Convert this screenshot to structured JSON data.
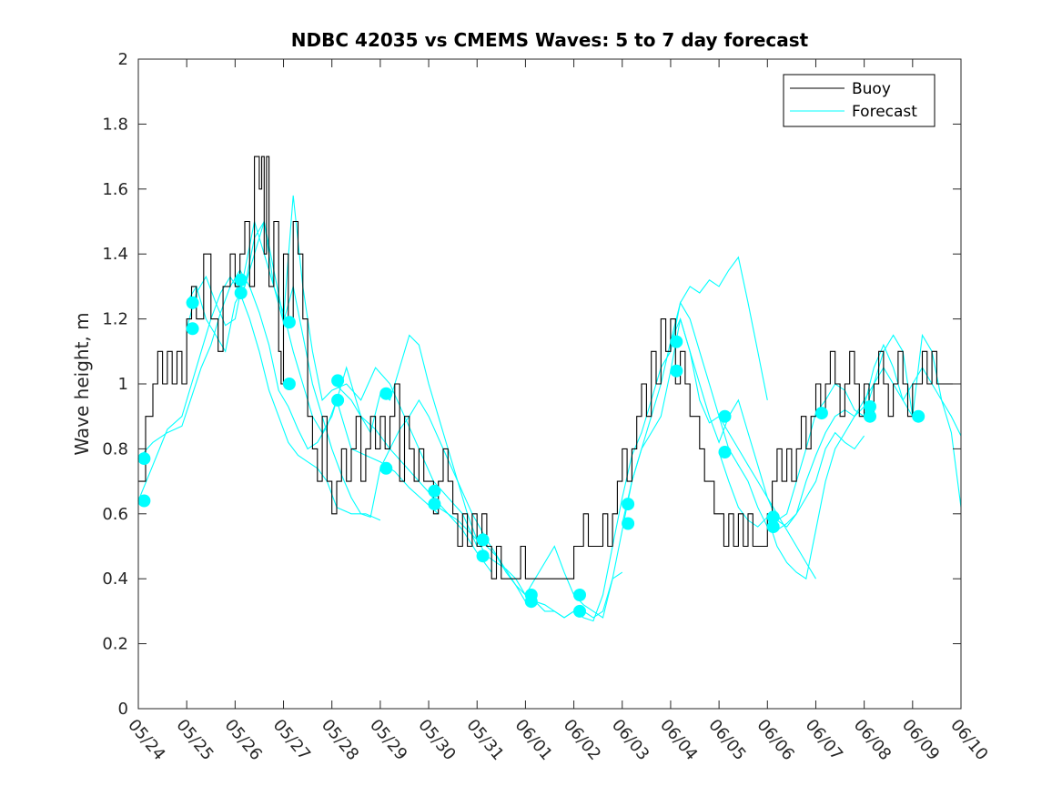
{
  "chart_data": {
    "type": "line",
    "title": "NDBC 42035 vs CMEMS Waves: 5 to 7 day forecast",
    "xlabel": "",
    "ylabel": "Wave height, m",
    "xlim": [
      0,
      17
    ],
    "ylim": [
      0,
      2
    ],
    "yticks": [
      0,
      0.2,
      0.4,
      0.6,
      0.8,
      1,
      1.2,
      1.4,
      1.6,
      1.8,
      2
    ],
    "ytick_labels": [
      "0",
      "0.2",
      "0.4",
      "0.6",
      "0.8",
      "1",
      "1.2",
      "1.4",
      "1.6",
      "1.8",
      "2"
    ],
    "xtick_labels": [
      "05/24",
      "05/25",
      "05/26",
      "05/27",
      "05/28",
      "05/29",
      "05/30",
      "05/31",
      "06/01",
      "06/02",
      "06/03",
      "06/04",
      "06/05",
      "06/06",
      "06/07",
      "06/08",
      "06/09",
      "06/10"
    ],
    "legend": {
      "position": "top-right"
    },
    "colors": {
      "buoy": "#000000",
      "forecast": "#00ffff",
      "markers": "#00ffff",
      "axes": "#262626"
    },
    "series": [
      {
        "name": "Buoy",
        "color": "#000000",
        "step": true,
        "x": [
          0.0,
          0.15,
          0.3,
          0.4,
          0.5,
          0.6,
          0.7,
          0.8,
          0.9,
          1.0,
          1.1,
          1.2,
          1.35,
          1.5,
          1.65,
          1.75,
          1.9,
          2.0,
          2.1,
          2.2,
          2.3,
          2.4,
          2.5,
          2.55,
          2.6,
          2.65,
          2.7,
          2.8,
          2.9,
          2.95,
          3.0,
          3.1,
          3.2,
          3.3,
          3.4,
          3.5,
          3.6,
          3.7,
          3.8,
          3.9,
          4.0,
          4.1,
          4.2,
          4.3,
          4.4,
          4.5,
          4.6,
          4.7,
          4.8,
          4.9,
          5.0,
          5.1,
          5.2,
          5.3,
          5.4,
          5.5,
          5.6,
          5.7,
          5.8,
          5.9,
          6.0,
          6.1,
          6.2,
          6.3,
          6.4,
          6.5,
          6.6,
          6.7,
          6.8,
          6.9,
          7.0,
          7.1,
          7.2,
          7.3,
          7.4,
          7.5,
          7.6,
          7.7,
          7.8,
          7.9,
          8.0,
          8.2,
          8.4,
          8.6,
          8.8,
          9.0,
          9.1,
          9.2,
          9.3,
          9.4,
          9.5,
          9.6,
          9.7,
          9.8,
          9.9,
          10.0,
          10.1,
          10.2,
          10.3,
          10.4,
          10.5,
          10.6,
          10.7,
          10.8,
          10.9,
          11.0,
          11.1,
          11.2,
          11.3,
          11.4,
          11.5,
          11.6,
          11.7,
          11.8,
          11.9,
          12.0,
          12.1,
          12.2,
          12.3,
          12.4,
          12.5,
          12.6,
          12.7,
          12.8,
          12.9,
          13.0,
          13.1,
          13.2,
          13.3,
          13.4,
          13.5,
          13.6,
          13.7,
          13.8,
          13.9,
          14.0,
          14.1,
          14.2,
          14.3,
          14.4,
          14.5,
          14.6,
          14.7,
          14.8,
          14.9,
          15.0,
          15.1,
          15.2,
          15.3,
          15.4,
          15.5,
          15.6,
          15.7,
          15.8,
          15.9,
          16.0,
          16.1,
          16.2,
          16.3,
          16.4,
          16.5,
          16.6,
          16.7,
          16.8,
          16.9,
          17.0
        ],
        "values": [
          0.7,
          0.9,
          1.0,
          1.1,
          1.0,
          1.1,
          1.0,
          1.1,
          1.0,
          1.2,
          1.3,
          1.2,
          1.4,
          1.2,
          1.1,
          1.3,
          1.4,
          1.3,
          1.4,
          1.5,
          1.3,
          1.7,
          1.6,
          1.7,
          1.4,
          1.7,
          1.3,
          1.5,
          1.1,
          1.0,
          1.4,
          1.2,
          1.5,
          1.4,
          1.2,
          0.9,
          0.8,
          0.7,
          0.9,
          0.7,
          0.6,
          0.7,
          0.8,
          0.7,
          0.8,
          0.9,
          0.7,
          0.8,
          0.9,
          0.8,
          0.9,
          0.8,
          0.9,
          1.0,
          0.7,
          0.9,
          0.8,
          0.7,
          0.8,
          0.7,
          0.7,
          0.6,
          0.7,
          0.8,
          0.7,
          0.6,
          0.5,
          0.6,
          0.5,
          0.6,
          0.5,
          0.6,
          0.5,
          0.4,
          0.5,
          0.4,
          0.4,
          0.4,
          0.4,
          0.5,
          0.4,
          0.4,
          0.4,
          0.4,
          0.4,
          0.5,
          0.5,
          0.6,
          0.5,
          0.5,
          0.5,
          0.6,
          0.5,
          0.6,
          0.7,
          0.8,
          0.7,
          0.8,
          0.9,
          1.0,
          0.9,
          1.1,
          1.0,
          1.2,
          1.1,
          1.2,
          1.0,
          1.1,
          1.0,
          0.9,
          0.9,
          0.8,
          0.7,
          0.7,
          0.6,
          0.6,
          0.5,
          0.6,
          0.5,
          0.6,
          0.5,
          0.6,
          0.5,
          0.5,
          0.5,
          0.6,
          0.7,
          0.8,
          0.7,
          0.8,
          0.7,
          0.8,
          0.9,
          0.8,
          0.9,
          1.0,
          0.9,
          1.0,
          1.1,
          1.0,
          0.9,
          1.0,
          1.1,
          1.0,
          0.9,
          1.0,
          0.9,
          1.0,
          1.1,
          1.0,
          0.9,
          1.0,
          1.1,
          1.0,
          0.9,
          1.0,
          1.0,
          1.1,
          1.0,
          1.1,
          1.0,
          1.0,
          1.0,
          1.0,
          1.0,
          1.0
        ]
      },
      {
        "name": "Forecast",
        "color": "#00ffff",
        "x": [
          0.0,
          0.3,
          0.6,
          0.9,
          1.1,
          1.3,
          1.5,
          1.7,
          1.9,
          2.1,
          2.3,
          2.5,
          2.7,
          2.9,
          3.1,
          3.3,
          3.5,
          3.7,
          3.9,
          4.1,
          4.4,
          4.7,
          5.0
        ],
        "values": [
          0.64,
          0.75,
          0.86,
          0.9,
          1.0,
          1.1,
          1.2,
          1.28,
          1.33,
          1.28,
          1.2,
          1.1,
          0.98,
          0.9,
          0.82,
          0.78,
          0.76,
          0.74,
          0.7,
          0.62,
          0.6,
          0.6,
          0.58
        ]
      },
      {
        "name": "",
        "color": "#00ffff",
        "x": [
          0.0,
          0.3,
          0.6,
          0.9,
          1.1,
          1.3,
          1.5,
          1.7,
          1.9,
          2.1,
          2.3,
          2.5,
          2.7,
          2.9,
          3.1,
          3.3,
          3.5,
          3.7,
          3.9,
          4.1,
          4.4,
          4.7,
          5.0,
          5.3,
          5.6,
          5.9,
          6.2
        ],
        "values": [
          0.77,
          0.82,
          0.85,
          0.87,
          0.96,
          1.05,
          1.12,
          1.22,
          1.3,
          1.35,
          1.3,
          1.22,
          1.12,
          0.98,
          0.93,
          0.86,
          0.8,
          0.82,
          0.87,
          0.95,
          0.8,
          0.78,
          0.76,
          0.73,
          0.68,
          0.64,
          0.6
        ]
      },
      {
        "name": "",
        "color": "#00ffff",
        "x": [
          1.0,
          1.2,
          1.4,
          1.6,
          1.8,
          2.0,
          2.2,
          2.4,
          2.6,
          2.8,
          3.0,
          3.2,
          3.4,
          3.6,
          3.8,
          4.0,
          4.3,
          4.6,
          4.9,
          5.2,
          5.5,
          5.8,
          6.1,
          6.4,
          6.7,
          7.0,
          7.3
        ],
        "values": [
          1.17,
          1.28,
          1.33,
          1.25,
          1.18,
          1.2,
          1.35,
          1.5,
          1.4,
          1.3,
          1.22,
          1.1,
          1.0,
          0.9,
          0.85,
          0.9,
          1.05,
          0.9,
          0.86,
          0.8,
          0.75,
          0.7,
          0.65,
          0.6,
          0.55,
          0.48,
          0.42
        ]
      },
      {
        "name": "",
        "color": "#00ffff",
        "x": [
          1.0,
          1.2,
          1.4,
          1.6,
          1.8,
          2.0,
          2.2,
          2.4,
          2.6,
          2.8,
          3.0,
          3.2,
          3.4,
          3.6,
          3.8,
          4.0,
          4.3,
          4.6,
          4.9,
          5.2,
          5.5,
          5.8,
          6.1,
          6.4,
          6.7,
          7.0
        ],
        "values": [
          1.25,
          1.3,
          1.2,
          1.15,
          1.1,
          1.25,
          1.3,
          1.45,
          1.5,
          1.35,
          1.2,
          1.58,
          1.3,
          1.1,
          0.95,
          0.98,
          1.0,
          0.95,
          1.05,
          1.0,
          0.9,
          0.8,
          0.7,
          0.65,
          0.6,
          0.5
        ]
      },
      {
        "name": "",
        "color": "#00ffff",
        "x": [
          2.0,
          2.2,
          2.4,
          2.6,
          2.8,
          3.0,
          3.2,
          3.4,
          3.6,
          3.8,
          4.0,
          4.2,
          4.4,
          4.6,
          4.8,
          5.0,
          5.2,
          5.4,
          5.6,
          5.8,
          6.0,
          6.3,
          6.6,
          6.9,
          7.2,
          7.5,
          7.8,
          8.0
        ],
        "values": [
          1.28,
          1.3,
          1.4,
          1.5,
          1.3,
          1.19,
          1.3,
          1.15,
          1.0,
          0.9,
          0.8,
          0.72,
          0.65,
          0.6,
          0.59,
          0.74,
          0.8,
          0.86,
          0.9,
          0.95,
          0.9,
          0.8,
          0.7,
          0.6,
          0.52,
          0.45,
          0.38,
          0.33
        ]
      },
      {
        "name": "",
        "color": "#00ffff",
        "x": [
          4.0,
          4.2,
          4.4,
          4.6,
          4.8,
          5.0,
          5.2,
          5.4,
          5.6,
          5.8,
          6.0,
          6.2,
          6.4,
          6.6,
          6.8,
          7.0,
          7.2,
          7.4,
          7.6,
          7.8,
          8.0,
          8.2,
          8.4,
          8.6,
          8.8,
          9.0
        ],
        "values": [
          1.01,
          0.98,
          0.95,
          0.9,
          0.85,
          0.97,
          0.95,
          1.05,
          1.15,
          1.12,
          1.0,
          0.9,
          0.8,
          0.7,
          0.6,
          0.52,
          0.5,
          0.47,
          0.42,
          0.38,
          0.35,
          0.33,
          0.32,
          0.3,
          0.28,
          0.3
        ]
      },
      {
        "name": "",
        "color": "#00ffff",
        "x": [
          6.0,
          6.2,
          6.4,
          6.6,
          6.8,
          7.0,
          7.2,
          7.4,
          7.6,
          7.8,
          8.0,
          8.2,
          8.4,
          8.6,
          8.8,
          9.0,
          9.2,
          9.4,
          9.6,
          9.8,
          10.0
        ],
        "values": [
          0.67,
          0.62,
          0.6,
          0.58,
          0.55,
          0.52,
          0.47,
          0.45,
          0.43,
          0.4,
          0.35,
          0.33,
          0.3,
          0.3,
          0.28,
          0.3,
          0.3,
          0.28,
          0.3,
          0.4,
          0.42
        ]
      },
      {
        "name": "",
        "color": "#00ffff",
        "x": [
          8.0,
          8.2,
          8.4,
          8.6,
          8.8,
          9.0,
          9.2,
          9.4,
          9.6,
          9.8,
          10.0,
          10.2,
          10.4,
          10.6,
          10.8,
          11.0,
          11.2,
          11.4,
          11.6,
          11.8,
          12.0,
          12.2,
          12.4,
          12.6,
          12.8,
          13.0
        ],
        "values": [
          0.35,
          0.4,
          0.45,
          0.5,
          0.42,
          0.35,
          0.32,
          0.3,
          0.28,
          0.4,
          0.55,
          0.7,
          0.8,
          0.9,
          1.0,
          1.13,
          1.25,
          1.3,
          1.28,
          1.32,
          1.3,
          1.35,
          1.39,
          1.25,
          1.1,
          0.95
        ]
      },
      {
        "name": "",
        "color": "#00ffff",
        "x": [
          9.0,
          9.2,
          9.4,
          9.6,
          9.8,
          10.0,
          10.2,
          10.4,
          10.6,
          10.8,
          11.0,
          11.2,
          11.4,
          11.6,
          11.8,
          12.0,
          12.2,
          12.4,
          12.6,
          12.8,
          13.0,
          13.2,
          13.4,
          13.6,
          13.8,
          14.0
        ],
        "values": [
          0.3,
          0.28,
          0.27,
          0.35,
          0.5,
          0.65,
          0.78,
          0.85,
          0.95,
          1.05,
          1.1,
          1.25,
          1.2,
          1.1,
          1.0,
          0.9,
          0.85,
          0.8,
          0.75,
          0.7,
          0.65,
          0.6,
          0.55,
          0.5,
          0.45,
          0.4
        ]
      },
      {
        "name": "",
        "color": "#00ffff",
        "x": [
          10.0,
          10.2,
          10.4,
          10.6,
          10.8,
          11.0,
          11.2,
          11.4,
          11.6,
          11.8,
          12.0,
          12.2,
          12.4,
          12.6,
          12.8,
          13.0,
          13.2,
          13.4,
          13.6,
          13.8,
          14.0,
          14.2,
          14.4,
          14.6,
          14.8,
          15.0
        ],
        "values": [
          0.57,
          0.7,
          0.8,
          0.85,
          0.9,
          1.04,
          1.2,
          1.1,
          1.0,
          0.9,
          0.82,
          0.9,
          0.95,
          0.85,
          0.75,
          0.65,
          0.58,
          0.56,
          0.6,
          0.65,
          0.7,
          0.8,
          0.85,
          0.82,
          0.8,
          0.84
        ]
      },
      {
        "name": "",
        "color": "#00ffff",
        "x": [
          11.0,
          11.2,
          11.4,
          11.6,
          11.8,
          12.0,
          12.2,
          12.4,
          12.6,
          12.8,
          13.0,
          13.2,
          13.4,
          13.6,
          13.8,
          14.0,
          14.2,
          14.4,
          14.6,
          14.8,
          15.0,
          15.2,
          15.4,
          15.6,
          15.8,
          16.0
        ],
        "values": [
          1.13,
          1.2,
          1.1,
          0.95,
          0.88,
          0.9,
          0.8,
          0.75,
          0.7,
          0.62,
          0.56,
          0.55,
          0.57,
          0.6,
          0.7,
          0.78,
          0.85,
          0.9,
          0.92,
          0.9,
          0.93,
          1.05,
          1.12,
          1.05,
          0.95,
          0.9
        ]
      },
      {
        "name": "",
        "color": "#00ffff",
        "x": [
          12.0,
          12.2,
          12.4,
          12.6,
          12.8,
          13.0,
          13.2,
          13.4,
          13.6,
          13.8,
          14.0,
          14.2,
          14.4,
          14.6,
          14.8,
          15.0,
          15.2,
          15.4,
          15.6,
          15.8,
          16.0,
          16.2,
          16.4,
          16.6,
          16.8,
          17.0
        ],
        "values": [
          0.79,
          0.7,
          0.62,
          0.58,
          0.56,
          0.59,
          0.5,
          0.45,
          0.42,
          0.4,
          0.55,
          0.7,
          0.8,
          0.85,
          0.9,
          0.95,
          1.0,
          1.1,
          1.15,
          1.1,
          0.9,
          1.15,
          1.1,
          0.95,
          0.85,
          0.62
        ]
      },
      {
        "name": "",
        "color": "#00ffff",
        "x": [
          13.0,
          13.2,
          13.4,
          13.6,
          13.8,
          14.0,
          14.2,
          14.4,
          14.6,
          14.8,
          15.0,
          15.2,
          15.4,
          15.6,
          15.8,
          16.0,
          16.2,
          16.4,
          16.6,
          16.8,
          17.0
        ],
        "values": [
          0.56,
          0.58,
          0.6,
          0.7,
          0.8,
          0.91,
          0.95,
          1.0,
          0.98,
          0.92,
          0.9,
          1.0,
          1.05,
          1.0,
          0.95,
          1.0,
          1.05,
          1.0,
          0.95,
          0.9,
          0.84
        ]
      }
    ],
    "markers": {
      "name": "forecast-start-points",
      "x": [
        0.12,
        0.12,
        1.12,
        1.12,
        2.12,
        2.12,
        3.12,
        3.12,
        4.12,
        4.12,
        5.12,
        5.12,
        6.12,
        6.12,
        7.12,
        7.12,
        8.12,
        8.12,
        9.12,
        9.12,
        10.12,
        10.12,
        11.12,
        11.12,
        12.12,
        12.12,
        13.12,
        13.12,
        14.12,
        15.12,
        15.12,
        16.12
      ],
      "values": [
        0.64,
        0.77,
        1.25,
        1.17,
        1.32,
        1.28,
        1.19,
        1.0,
        1.01,
        0.95,
        0.97,
        0.74,
        0.67,
        0.63,
        0.52,
        0.47,
        0.35,
        0.33,
        0.35,
        0.3,
        0.63,
        0.57,
        1.13,
        1.04,
        0.9,
        0.79,
        0.59,
        0.56,
        0.91,
        0.93,
        0.9,
        0.9
      ]
    }
  }
}
